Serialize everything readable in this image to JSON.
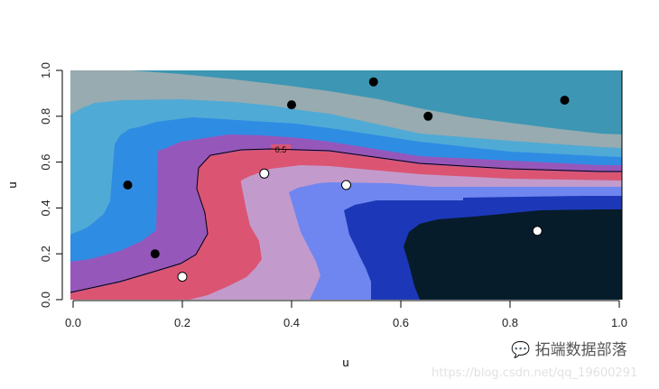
{
  "chart_data": {
    "type": "contour",
    "title": "",
    "xlabel": "u",
    "ylabel": "u",
    "xlim": [
      0,
      1
    ],
    "ylim": [
      0,
      1
    ],
    "x_ticks": [
      "0.0",
      "0.2",
      "0.4",
      "0.6",
      "0.8",
      "1.0"
    ],
    "y_ticks": [
      "0.0",
      "0.2",
      "0.4",
      "0.6",
      "0.8",
      "1.0"
    ],
    "grid": false,
    "level_colors_top_to_bottom": [
      "#3d96b4",
      "#97abb0",
      "#4faad6",
      "#2f8ce3",
      "#9657bb",
      "#db5573",
      "#c29bcc",
      "#6f86f0",
      "#1c38b8",
      "#061c2b"
    ],
    "contour_line": {
      "label": "0.5",
      "color": "#000000"
    },
    "points_black": [
      {
        "x": 0.1,
        "y": 0.5
      },
      {
        "x": 0.15,
        "y": 0.2
      },
      {
        "x": 0.4,
        "y": 0.85
      },
      {
        "x": 0.55,
        "y": 0.95
      },
      {
        "x": 0.65,
        "y": 0.8
      },
      {
        "x": 0.9,
        "y": 0.87
      }
    ],
    "points_white": [
      {
        "x": 0.2,
        "y": 0.1
      },
      {
        "x": 0.35,
        "y": 0.55
      },
      {
        "x": 0.5,
        "y": 0.5
      },
      {
        "x": 0.85,
        "y": 0.3
      }
    ]
  },
  "watermark": {
    "brand": "拓端数据部落",
    "url": "https://blog.csdn.net/qq_19600291"
  }
}
